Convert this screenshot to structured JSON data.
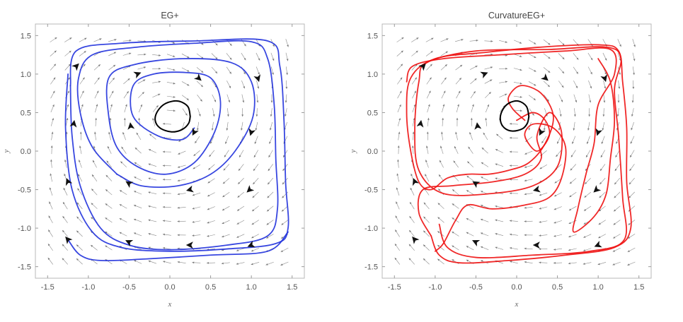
{
  "chart_data": [
    {
      "type": "line",
      "title": "EG+",
      "xlabel": "x",
      "ylabel": "y",
      "xlim": [
        -1.65,
        1.65
      ],
      "ylim": [
        -1.65,
        1.65
      ],
      "xticks": [
        "-1.5",
        "-1.0",
        "-0.5",
        "0.0",
        "0.5",
        "1.0",
        "1.5"
      ],
      "yticks": [
        "-1.5",
        "-1.0",
        "-0.5",
        "0.0",
        "0.5",
        "1.0",
        "1.5"
      ],
      "background": "vector field (gray arrows)",
      "series": [
        {
          "color": "#2233dd",
          "kind": "trajectory",
          "points": [
            [
              0.3,
              0.3
            ],
            [
              0.15,
              0.15
            ],
            [
              -0.15,
              0.2
            ],
            [
              -0.45,
              0.45
            ],
            [
              -0.45,
              0.85
            ],
            [
              -0.2,
              1.0
            ],
            [
              0.2,
              1.02
            ],
            [
              0.5,
              0.95
            ],
            [
              0.62,
              0.65
            ],
            [
              0.55,
              0.25
            ],
            [
              0.3,
              -0.15
            ],
            [
              -0.05,
              -0.3
            ],
            [
              -0.4,
              -0.2
            ],
            [
              -0.65,
              0.05
            ],
            [
              -0.75,
              0.45
            ],
            [
              -0.75,
              0.95
            ],
            [
              -0.45,
              1.12
            ],
            [
              0.15,
              1.2
            ],
            [
              0.75,
              1.15
            ],
            [
              1.0,
              0.9
            ],
            [
              1.02,
              0.45
            ],
            [
              0.8,
              0.0
            ],
            [
              0.5,
              -0.3
            ],
            [
              0.1,
              -0.45
            ],
            [
              -0.35,
              -0.45
            ],
            [
              -0.65,
              -0.3
            ]
          ]
        },
        {
          "color": "#2233dd",
          "kind": "trajectory",
          "points": [
            [
              -0.65,
              -0.3
            ],
            [
              -0.95,
              0.05
            ],
            [
              -1.1,
              0.5
            ],
            [
              -1.12,
              0.95
            ],
            [
              -0.95,
              1.25
            ],
            [
              -0.4,
              1.35
            ],
            [
              0.3,
              1.4
            ],
            [
              1.0,
              1.42
            ],
            [
              1.2,
              1.2
            ],
            [
              1.28,
              0.6
            ],
            [
              1.3,
              -0.1
            ],
            [
              1.32,
              -0.75
            ],
            [
              1.2,
              -1.1
            ],
            [
              0.7,
              -1.22
            ],
            [
              0.0,
              -1.28
            ],
            [
              -0.5,
              -1.22
            ],
            [
              -0.85,
              -1.0
            ],
            [
              -1.1,
              -0.45
            ],
            [
              -1.2,
              0.2
            ],
            [
              -1.22,
              0.85
            ]
          ]
        },
        {
          "color": "#2233dd",
          "kind": "trajectory",
          "points": [
            [
              -1.22,
              0.85
            ],
            [
              -1.15,
              1.3
            ],
            [
              -0.6,
              1.4
            ],
            [
              0.3,
              1.43
            ],
            [
              1.2,
              1.43
            ],
            [
              1.35,
              1.1
            ],
            [
              1.4,
              0.4
            ],
            [
              1.42,
              -0.4
            ],
            [
              1.45,
              -1.0
            ],
            [
              1.3,
              -1.2
            ],
            [
              0.7,
              -1.27
            ],
            [
              0.0,
              -1.3
            ],
            [
              -0.6,
              -1.25
            ],
            [
              -0.95,
              -1.05
            ],
            [
              -1.2,
              -0.5
            ],
            [
              -1.28,
              0.3
            ],
            [
              -1.25,
              1.0
            ]
          ]
        },
        {
          "color": "#2233dd",
          "kind": "trajectory",
          "points": [
            [
              1.45,
              -1.05
            ],
            [
              1.2,
              -1.3
            ],
            [
              0.5,
              -1.35
            ],
            [
              -0.3,
              -1.4
            ],
            [
              -0.85,
              -1.42
            ],
            [
              -1.1,
              -1.35
            ],
            [
              -1.25,
              -1.15
            ]
          ]
        },
        {
          "color": "#000000",
          "kind": "limit cycle",
          "points": [
            [
              0.25,
              0.45
            ],
            [
              0.22,
              0.58
            ],
            [
              0.1,
              0.65
            ],
            [
              -0.05,
              0.62
            ],
            [
              -0.15,
              0.52
            ],
            [
              -0.18,
              0.4
            ],
            [
              -0.12,
              0.3
            ],
            [
              0.02,
              0.25
            ],
            [
              0.15,
              0.28
            ],
            [
              0.23,
              0.36
            ],
            [
              0.25,
              0.45
            ]
          ]
        }
      ]
    },
    {
      "type": "line",
      "title": "CurvatureEG+",
      "xlabel": "x",
      "ylabel": "y",
      "xlim": [
        -1.65,
        1.65
      ],
      "ylim": [
        -1.65,
        1.65
      ],
      "xticks": [
        "-1.5",
        "-1.0",
        "-0.5",
        "0.0",
        "0.5",
        "1.0",
        "1.5"
      ],
      "yticks": [
        "-1.5",
        "-1.0",
        "-0.5",
        "0.0",
        "0.5",
        "1.0",
        "1.5"
      ],
      "background": "vector field (gray arrows)",
      "series": [
        {
          "color": "#ee1111",
          "kind": "trajectory",
          "points": [
            [
              0.1,
              0.4
            ],
            [
              -0.05,
              0.55
            ],
            [
              -0.1,
              0.7
            ],
            [
              0.05,
              0.85
            ],
            [
              0.3,
              0.75
            ],
            [
              0.45,
              0.45
            ],
            [
              0.35,
              0.1
            ],
            [
              0.15,
              -0.15
            ],
            [
              -0.1,
              -0.25
            ],
            [
              -0.35,
              -0.3
            ],
            [
              -0.6,
              -0.3
            ],
            [
              -0.85,
              -0.35
            ],
            [
              -1.05,
              -0.5
            ],
            [
              -1.2,
              -0.4
            ],
            [
              -1.3,
              0.0
            ],
            [
              -1.35,
              0.5
            ],
            [
              -1.3,
              0.95
            ],
            [
              -1.0,
              1.2
            ],
            [
              -0.4,
              1.28
            ],
            [
              0.3,
              1.35
            ],
            [
              1.0,
              1.38
            ],
            [
              1.25,
              1.3
            ],
            [
              1.3,
              0.9
            ],
            [
              1.35,
              0.3
            ],
            [
              1.35,
              -0.4
            ],
            [
              1.4,
              -1.0
            ],
            [
              1.2,
              -1.25
            ],
            [
              0.6,
              -1.35
            ],
            [
              -0.1,
              -1.42
            ],
            [
              -0.7,
              -1.45
            ],
            [
              -0.95,
              -1.35
            ],
            [
              -1.05,
              -1.1
            ]
          ]
        },
        {
          "color": "#ee1111",
          "kind": "trajectory",
          "points": [
            [
              -1.05,
              -1.1
            ],
            [
              -1.2,
              -0.8
            ],
            [
              -1.15,
              -0.5
            ],
            [
              -0.8,
              -0.45
            ],
            [
              -0.3,
              -0.4
            ],
            [
              0.1,
              -0.3
            ],
            [
              0.3,
              -0.1
            ],
            [
              0.25,
              0.2
            ],
            [
              0.4,
              0.5
            ],
            [
              0.55,
              0.25
            ],
            [
              0.5,
              -0.2
            ],
            [
              0.2,
              -0.45
            ],
            [
              -0.3,
              -0.55
            ],
            [
              -0.9,
              -0.55
            ],
            [
              -1.2,
              -0.25
            ],
            [
              -1.25,
              0.3
            ],
            [
              -1.2,
              0.9
            ],
            [
              -1.1,
              1.15
            ],
            [
              -0.5,
              1.3
            ],
            [
              0.4,
              1.32
            ],
            [
              1.1,
              1.35
            ],
            [
              1.28,
              1.2
            ],
            [
              1.2,
              0.8
            ],
            [
              1.25,
              0.2
            ],
            [
              1.3,
              -0.6
            ],
            [
              1.32,
              -1.15
            ],
            [
              0.9,
              -1.3
            ],
            [
              0.2,
              -1.35
            ],
            [
              -0.5,
              -1.38
            ],
            [
              -0.85,
              -1.25
            ],
            [
              -0.95,
              -0.95
            ]
          ]
        },
        {
          "color": "#ee1111",
          "kind": "trajectory",
          "points": [
            [
              -1.35,
              0.9
            ],
            [
              -1.28,
              1.1
            ],
            [
              -0.9,
              1.2
            ],
            [
              -0.2,
              1.25
            ],
            [
              0.6,
              1.3
            ],
            [
              1.15,
              1.32
            ],
            [
              1.2,
              1.0
            ],
            [
              1.0,
              0.6
            ],
            [
              0.95,
              0.1
            ],
            [
              0.85,
              -0.3
            ],
            [
              0.75,
              -0.75
            ],
            [
              0.7,
              -1.05
            ],
            [
              0.95,
              -0.85
            ],
            [
              1.1,
              -0.55
            ],
            [
              1.15,
              -0.1
            ],
            [
              1.2,
              0.4
            ],
            [
              1.15,
              0.9
            ],
            [
              1.0,
              1.2
            ]
          ]
        },
        {
          "color": "#ee1111",
          "kind": "trajectory",
          "points": [
            [
              0.0,
              0.4
            ],
            [
              0.2,
              0.5
            ],
            [
              0.35,
              0.4
            ],
            [
              0.4,
              0.2
            ],
            [
              0.25,
              0.0
            ],
            [
              0.1,
              0.2
            ],
            [
              0.2,
              0.35
            ],
            [
              0.45,
              0.3
            ],
            [
              0.6,
              0.05
            ],
            [
              0.55,
              -0.35
            ],
            [
              0.4,
              -0.6
            ],
            [
              0.1,
              -0.7
            ],
            [
              -0.3,
              -0.75
            ],
            [
              -0.6,
              -0.7
            ],
            [
              -0.75,
              -0.9
            ],
            [
              -0.9,
              -1.2
            ],
            [
              -1.0,
              -1.3
            ]
          ]
        },
        {
          "color": "#000000",
          "kind": "limit cycle",
          "points": [
            [
              0.15,
              0.45
            ],
            [
              0.12,
              0.58
            ],
            [
              0.02,
              0.65
            ],
            [
              -0.1,
              0.62
            ],
            [
              -0.18,
              0.52
            ],
            [
              -0.2,
              0.4
            ],
            [
              -0.15,
              0.3
            ],
            [
              -0.05,
              0.26
            ],
            [
              0.07,
              0.29
            ],
            [
              0.13,
              0.36
            ],
            [
              0.15,
              0.45
            ]
          ]
        }
      ]
    }
  ]
}
